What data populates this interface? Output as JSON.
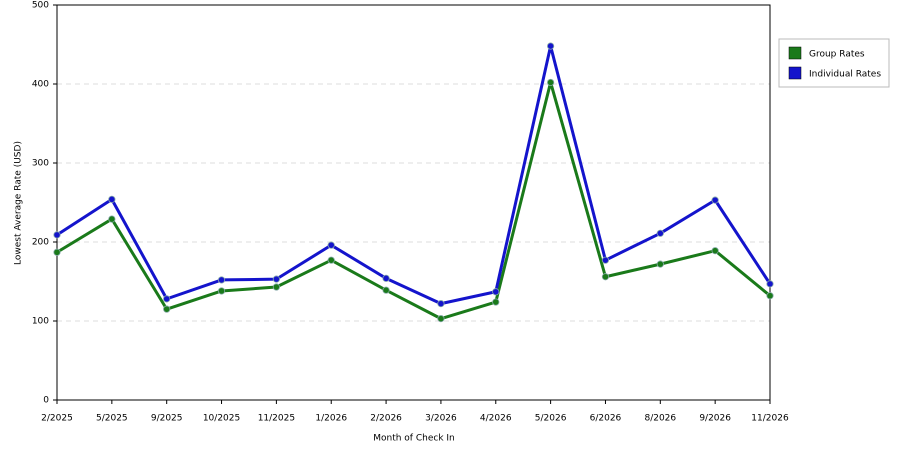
{
  "chart_data": {
    "type": "line",
    "x_label": "Month of Check In",
    "y_label": "Lowest Average Rate (USD)",
    "categories": [
      "2/2025",
      "5/2025",
      "9/2025",
      "10/2025",
      "11/2025",
      "1/2026",
      "2/2026",
      "3/2026",
      "4/2026",
      "5/2026",
      "6/2026",
      "8/2026",
      "9/2026",
      "11/2026"
    ],
    "series": [
      {
        "name": "Group Rates",
        "color": "#1a7a1a",
        "values": [
          187,
          229,
          115,
          138,
          143,
          177,
          139,
          103,
          124,
          402,
          156,
          172,
          189,
          132
        ]
      },
      {
        "name": "Individual Rates",
        "color": "#1414cc",
        "values": [
          209,
          254,
          128,
          152,
          153,
          196,
          154,
          122,
          137,
          448,
          177,
          211,
          253,
          147
        ]
      }
    ],
    "ylim": [
      0,
      500
    ],
    "yticks": [
      0,
      100,
      200,
      300,
      400,
      500
    ],
    "grid": true,
    "legend": "right"
  }
}
